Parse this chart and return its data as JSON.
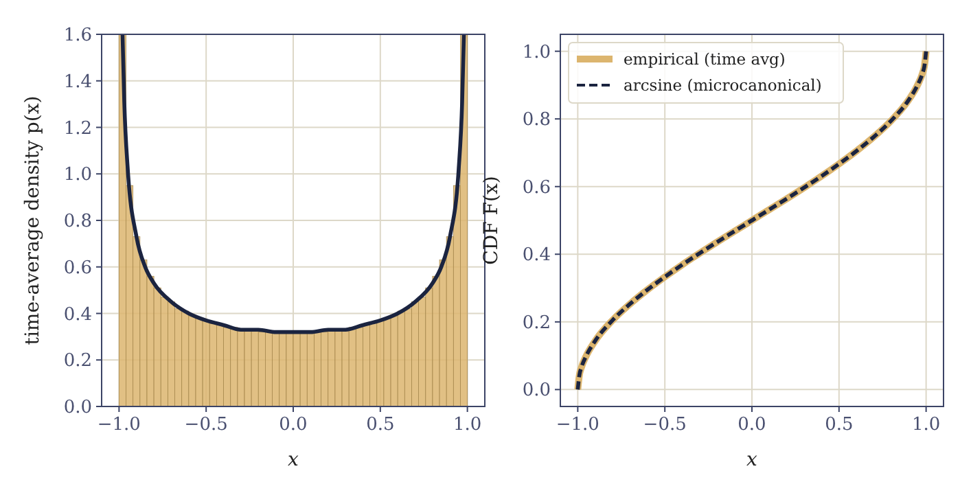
{
  "chart_data": [
    {
      "type": "histogram",
      "xlabel": "x",
      "ylabel": "time-average density p(x)",
      "xlim": [
        -1.1,
        1.1
      ],
      "ylim": [
        0,
        1.6
      ],
      "xticks": [
        {
          "value": -1,
          "label": "−1.0"
        },
        {
          "value": -0.5,
          "label": "−0.5"
        },
        {
          "value": 0,
          "label": "0.0"
        },
        {
          "value": 0.5,
          "label": "0.5"
        },
        {
          "value": 1,
          "label": "1.0"
        }
      ],
      "yticks": [
        {
          "value": 0,
          "label": "0.0"
        },
        {
          "value": 0.2,
          "label": "0.2"
        },
        {
          "value": 0.4,
          "label": "0.4"
        },
        {
          "value": 0.6,
          "label": "0.6"
        },
        {
          "value": 0.8,
          "label": "0.8"
        },
        {
          "value": 1,
          "label": "1.0"
        },
        {
          "value": 1.2,
          "label": "1.2"
        },
        {
          "value": 1.4,
          "label": "1.4"
        },
        {
          "value": 1.6,
          "label": "1.6"
        }
      ],
      "grid": true,
      "color": "#dcb56e",
      "bins": [
        -1,
        -0.96,
        -0.92,
        -0.88,
        -0.84,
        -0.8,
        -0.76,
        -0.72,
        -0.68,
        -0.64,
        -0.6,
        -0.56,
        -0.52,
        -0.48,
        -0.44,
        -0.4,
        -0.36,
        -0.32,
        -0.28,
        -0.24,
        -0.2,
        -0.16,
        -0.12,
        -0.08,
        -0.04,
        0,
        0.04,
        0.08,
        0.12,
        0.16,
        0.2,
        0.24,
        0.28,
        0.32,
        0.36,
        0.4,
        0.44,
        0.48,
        0.52,
        0.56,
        0.6,
        0.64,
        0.68,
        0.72,
        0.76,
        0.8,
        0.84,
        0.88,
        0.92,
        0.96,
        1
      ],
      "values": [
        1.6,
        0.95,
        0.73,
        0.63,
        0.56,
        0.51,
        0.47,
        0.45,
        0.42,
        0.41,
        0.39,
        0.38,
        0.37,
        0.36,
        0.35,
        0.34,
        0.34,
        0.33,
        0.33,
        0.33,
        0.32,
        0.32,
        0.32,
        0.32,
        0.32,
        0.32,
        0.32,
        0.32,
        0.32,
        0.32,
        0.33,
        0.33,
        0.33,
        0.34,
        0.34,
        0.35,
        0.36,
        0.37,
        0.38,
        0.39,
        0.41,
        0.42,
        0.45,
        0.47,
        0.51,
        0.56,
        0.63,
        0.73,
        0.95,
        1.6
      ],
      "series": [
        {
          "type": "line",
          "color": "#1b2440",
          "x": [
            -0.98,
            -0.97,
            -0.95,
            -0.9,
            -0.85,
            -0.8,
            -0.7,
            -0.6,
            -0.5,
            -0.4,
            -0.3,
            -0.2,
            -0.1,
            0,
            0.1,
            0.2,
            0.3,
            0.4,
            0.5,
            0.6,
            0.7,
            0.8,
            0.85,
            0.9,
            0.95,
            0.97,
            0.98
          ],
          "values": [
            1.6,
            1.31,
            1.02,
            0.73,
            0.6,
            0.53,
            0.45,
            0.4,
            0.37,
            0.35,
            0.33,
            0.33,
            0.32,
            0.32,
            0.32,
            0.33,
            0.33,
            0.35,
            0.37,
            0.4,
            0.45,
            0.53,
            0.6,
            0.73,
            1.02,
            1.31,
            1.6
          ]
        }
      ]
    },
    {
      "type": "line",
      "xlabel": "x",
      "ylabel": "CDF F(x)",
      "xlim": [
        -1.1,
        1.1
      ],
      "ylim": [
        -0.05,
        1.05
      ],
      "xticks": [
        {
          "value": -1,
          "label": "−1.0"
        },
        {
          "value": -0.5,
          "label": "−0.5"
        },
        {
          "value": 0,
          "label": "0.0"
        },
        {
          "value": 0.5,
          "label": "0.5"
        },
        {
          "value": 1,
          "label": "1.0"
        }
      ],
      "yticks": [
        {
          "value": 0,
          "label": "0.0"
        },
        {
          "value": 0.2,
          "label": "0.2"
        },
        {
          "value": 0.4,
          "label": "0.4"
        },
        {
          "value": 0.6,
          "label": "0.6"
        },
        {
          "value": 0.8,
          "label": "0.8"
        },
        {
          "value": 1,
          "label": "1.0"
        }
      ],
      "grid": true,
      "legend": "top left",
      "series": [
        {
          "name": "empirical (time avg)",
          "color": "#dcb56e",
          "line_style": "solid",
          "x": [
            -1,
            -0.99,
            -0.98,
            -0.95,
            -0.9,
            -0.8,
            -0.7,
            -0.6,
            -0.5,
            -0.4,
            -0.3,
            -0.2,
            -0.1,
            0,
            0.1,
            0.2,
            0.3,
            0.4,
            0.5,
            0.6,
            0.7,
            0.8,
            0.9,
            0.95,
            0.98,
            0.99,
            1
          ],
          "values": [
            0,
            0.045,
            0.064,
            0.101,
            0.144,
            0.205,
            0.253,
            0.295,
            0.333,
            0.369,
            0.403,
            0.436,
            0.468,
            0.5,
            0.532,
            0.564,
            0.597,
            0.631,
            0.667,
            0.705,
            0.747,
            0.795,
            0.856,
            0.899,
            0.936,
            0.955,
            1
          ]
        },
        {
          "name": "arcsine (microcanonical)",
          "color": "#1b2440",
          "line_style": "dashed",
          "x": [
            -1,
            -0.99,
            -0.98,
            -0.95,
            -0.9,
            -0.8,
            -0.7,
            -0.6,
            -0.5,
            -0.4,
            -0.3,
            -0.2,
            -0.1,
            0,
            0.1,
            0.2,
            0.3,
            0.4,
            0.5,
            0.6,
            0.7,
            0.8,
            0.9,
            0.95,
            0.98,
            0.99,
            1
          ],
          "values": [
            0,
            0.045,
            0.064,
            0.101,
            0.144,
            0.205,
            0.253,
            0.295,
            0.333,
            0.369,
            0.403,
            0.436,
            0.468,
            0.5,
            0.532,
            0.564,
            0.597,
            0.631,
            0.667,
            0.705,
            0.747,
            0.795,
            0.856,
            0.899,
            0.936,
            0.955,
            1
          ]
        }
      ]
    }
  ]
}
